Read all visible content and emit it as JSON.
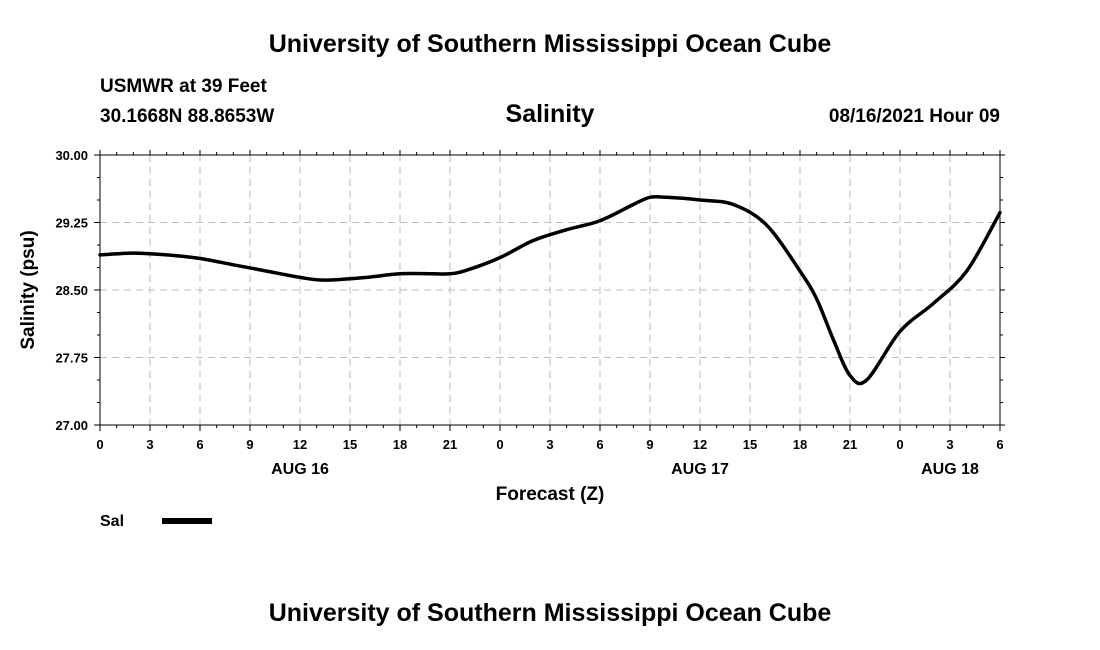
{
  "header": {
    "title": "University of Southern Mississippi Ocean Cube",
    "station": "USMWR at 39 Feet",
    "coordinates": "30.1668N  88.8653W",
    "variable": "Salinity",
    "datetime": "08/16/2021 Hour 09"
  },
  "footer": {
    "title": "University of Southern Mississippi Ocean Cube"
  },
  "chart_data": {
    "type": "line",
    "ylabel": "Salinity (psu)",
    "xlabel": "Forecast (Z)",
    "ylim": [
      27.0,
      30.0
    ],
    "xlim": [
      0,
      54
    ],
    "y_ticks": [
      "27.00",
      "27.75",
      "28.50",
      "29.25",
      "30.00"
    ],
    "y_tick_values": [
      27.0,
      27.75,
      28.5,
      29.25,
      30.0
    ],
    "x_ticks": [
      "0",
      "3",
      "6",
      "9",
      "12",
      "15",
      "18",
      "21",
      "0",
      "3",
      "6",
      "9",
      "12",
      "15",
      "18",
      "21",
      "0",
      "3",
      "6"
    ],
    "x_tick_hours": [
      0,
      3,
      6,
      9,
      12,
      15,
      18,
      21,
      24,
      27,
      30,
      33,
      36,
      39,
      42,
      45,
      48,
      51,
      54
    ],
    "date_labels": [
      {
        "label": "AUG 16",
        "hour": 12
      },
      {
        "label": "AUG 17",
        "hour": 36
      },
      {
        "label": "AUG 18",
        "hour": 51
      }
    ],
    "grid": true,
    "legend_position": "bottom-left",
    "series": [
      {
        "name": "Sal",
        "color": "#000000",
        "x": [
          0,
          2,
          4,
          6,
          8,
          10,
          12,
          13.5,
          16,
          18,
          20,
          21,
          22,
          24,
          26,
          28,
          30,
          32,
          33,
          34,
          36,
          38,
          40,
          42,
          43,
          44,
          45,
          46,
          48,
          50,
          52,
          54
        ],
        "y": [
          28.89,
          28.91,
          28.89,
          28.85,
          28.78,
          28.71,
          28.64,
          28.61,
          28.64,
          28.68,
          28.68,
          28.68,
          28.72,
          28.86,
          29.05,
          29.17,
          29.27,
          29.45,
          29.53,
          29.53,
          29.5,
          29.45,
          29.22,
          28.71,
          28.4,
          27.95,
          27.55,
          27.5,
          28.04,
          28.35,
          28.71,
          29.36
        ]
      }
    ]
  }
}
